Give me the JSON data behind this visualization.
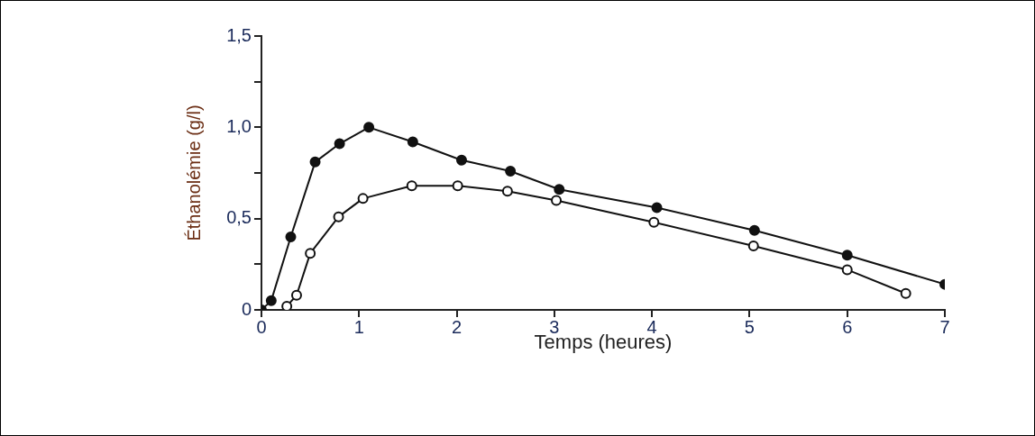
{
  "chart_data": {
    "type": "line",
    "xlabel": "Temps (heures)",
    "ylabel": "Éthanolémie (g/l)",
    "xlim": [
      0,
      7
    ],
    "xticks": [
      0,
      1,
      2,
      3,
      4,
      5,
      6,
      7
    ],
    "ylim": [
      0,
      1.5
    ],
    "yticks": [
      {
        "value": 0,
        "label": "0"
      },
      {
        "value": 0.25,
        "label": null
      },
      {
        "value": 0.5,
        "label": "0,5"
      },
      {
        "value": 0.75,
        "label": null
      },
      {
        "value": 1,
        "label": "1,0"
      },
      {
        "value": 1.25,
        "label": null
      },
      {
        "value": 1.5,
        "label": "1,5"
      }
    ],
    "grid": false,
    "legend": false,
    "marker": "circle",
    "line_style": "solid",
    "series": [
      {
        "color": "#111111",
        "x": [
          0,
          0.1,
          0.3,
          0.55,
          0.8,
          1.1,
          1.55,
          2.05,
          2.55,
          3.05,
          4.05,
          5.05,
          6.0,
          7.0
        ],
        "values": [
          0,
          0.05,
          0.4,
          0.81,
          0.91,
          1.0,
          0.92,
          0.82,
          0.76,
          0.66,
          0.56,
          0.435,
          0.3,
          0.14
        ]
      },
      {
        "color": "#111111",
        "x": [
          0.26,
          0.36,
          0.5,
          0.79,
          1.04,
          1.54,
          2.01,
          2.52,
          3.02,
          4.02,
          5.04,
          6.0,
          6.6
        ],
        "values": [
          0.02,
          0.08,
          0.31,
          0.51,
          0.61,
          0.68,
          0.68,
          0.65,
          0.6,
          0.48,
          0.35,
          0.22,
          0.09
        ]
      }
    ]
  }
}
